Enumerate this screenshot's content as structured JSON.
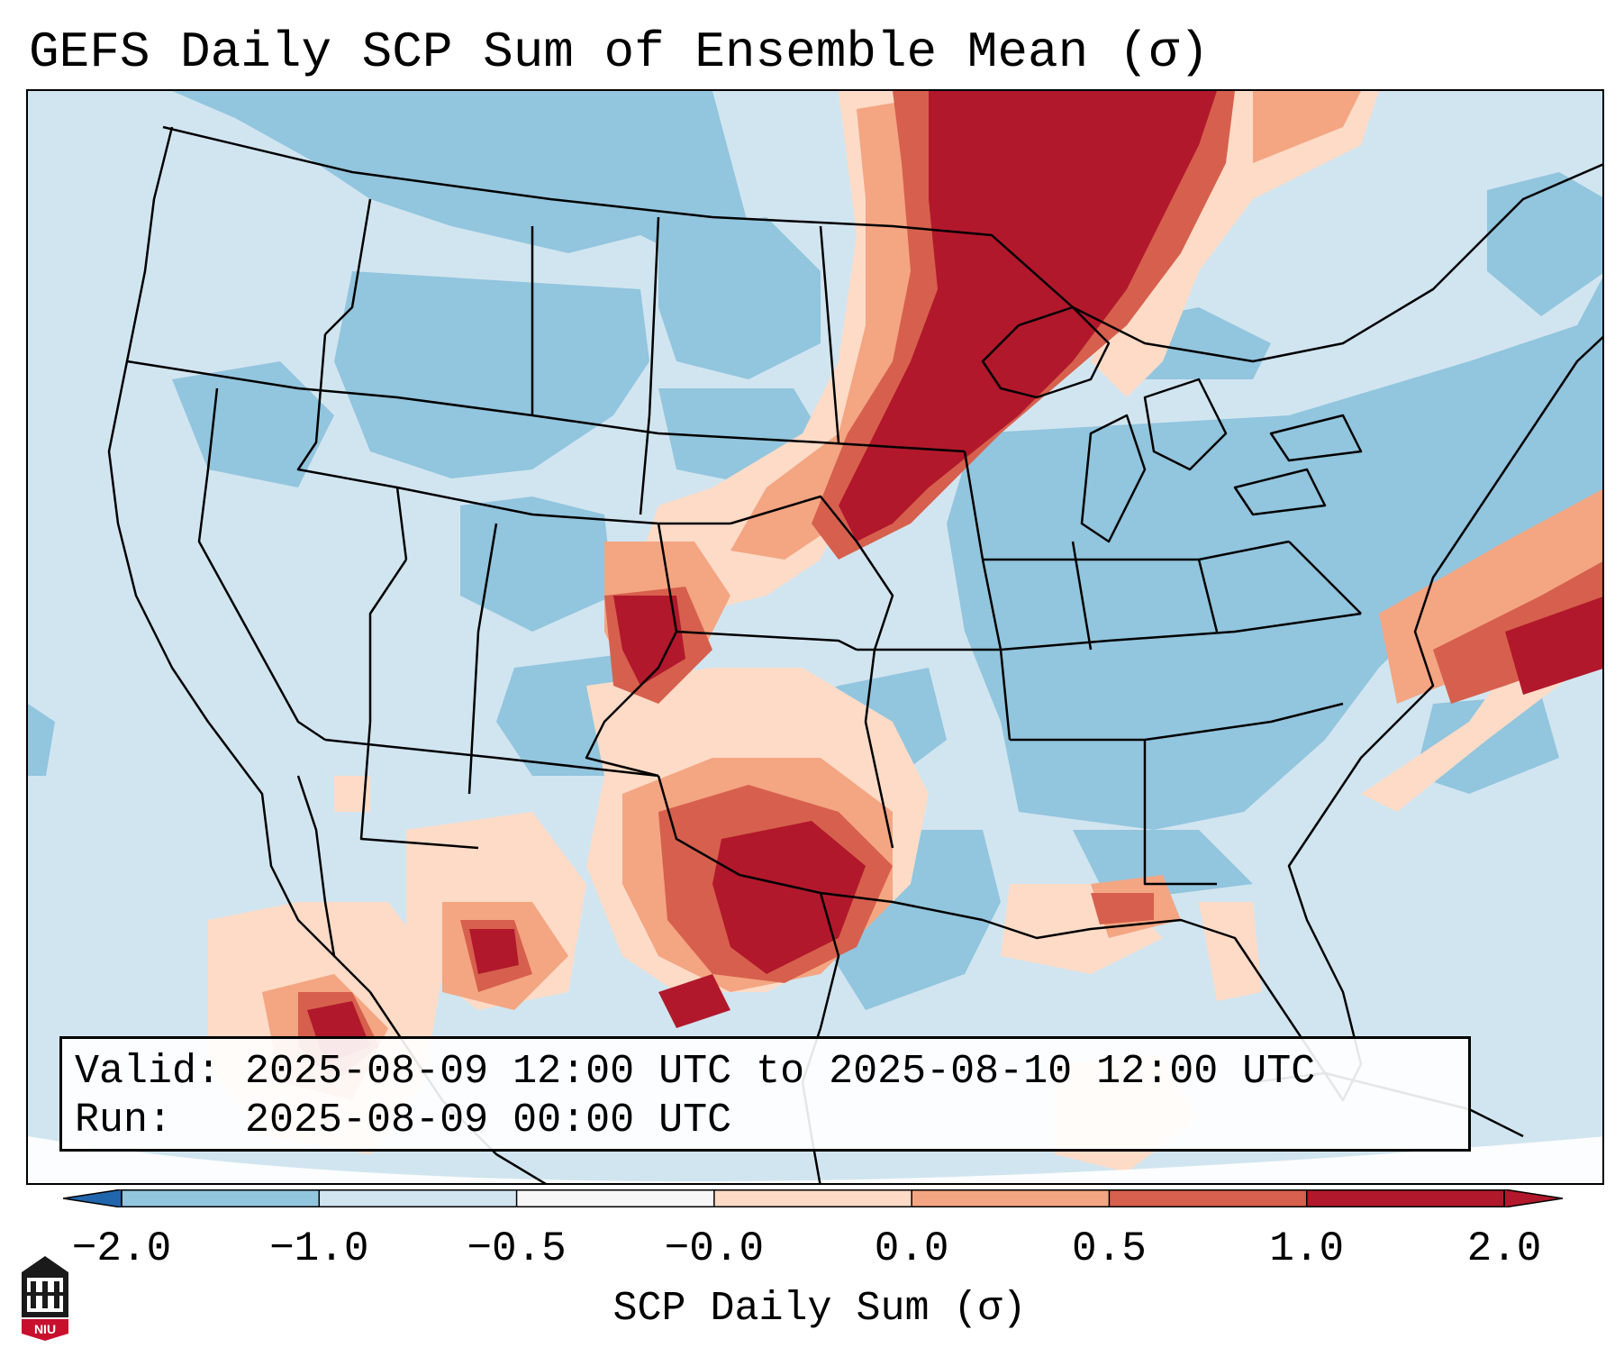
{
  "title": "GEFS Daily SCP Sum of Ensemble Mean (σ)",
  "info": {
    "valid_line": "Valid: 2025-08-09 12:00 UTC to 2025-08-10 12:00 UTC",
    "run_line": "Run:   2025-08-09 00:00 UTC"
  },
  "colorbar": {
    "label": "SCP Daily Sum (σ)",
    "ticks": [
      "−2.0",
      "−1.0",
      "−0.5",
      "−0.0",
      "0.0",
      "0.5",
      "1.0",
      "2.0"
    ],
    "colors": [
      "#4393c3",
      "#92c5de",
      "#d1e5f0",
      "#f7f7f7",
      "#fddbc7",
      "#f4a582",
      "#d6604d",
      "#b2182b"
    ],
    "under_color": "#2166ac",
    "over_color": "#b2182b"
  },
  "logo": {
    "text": "NIU",
    "icon": "niu-building-icon"
  }
}
